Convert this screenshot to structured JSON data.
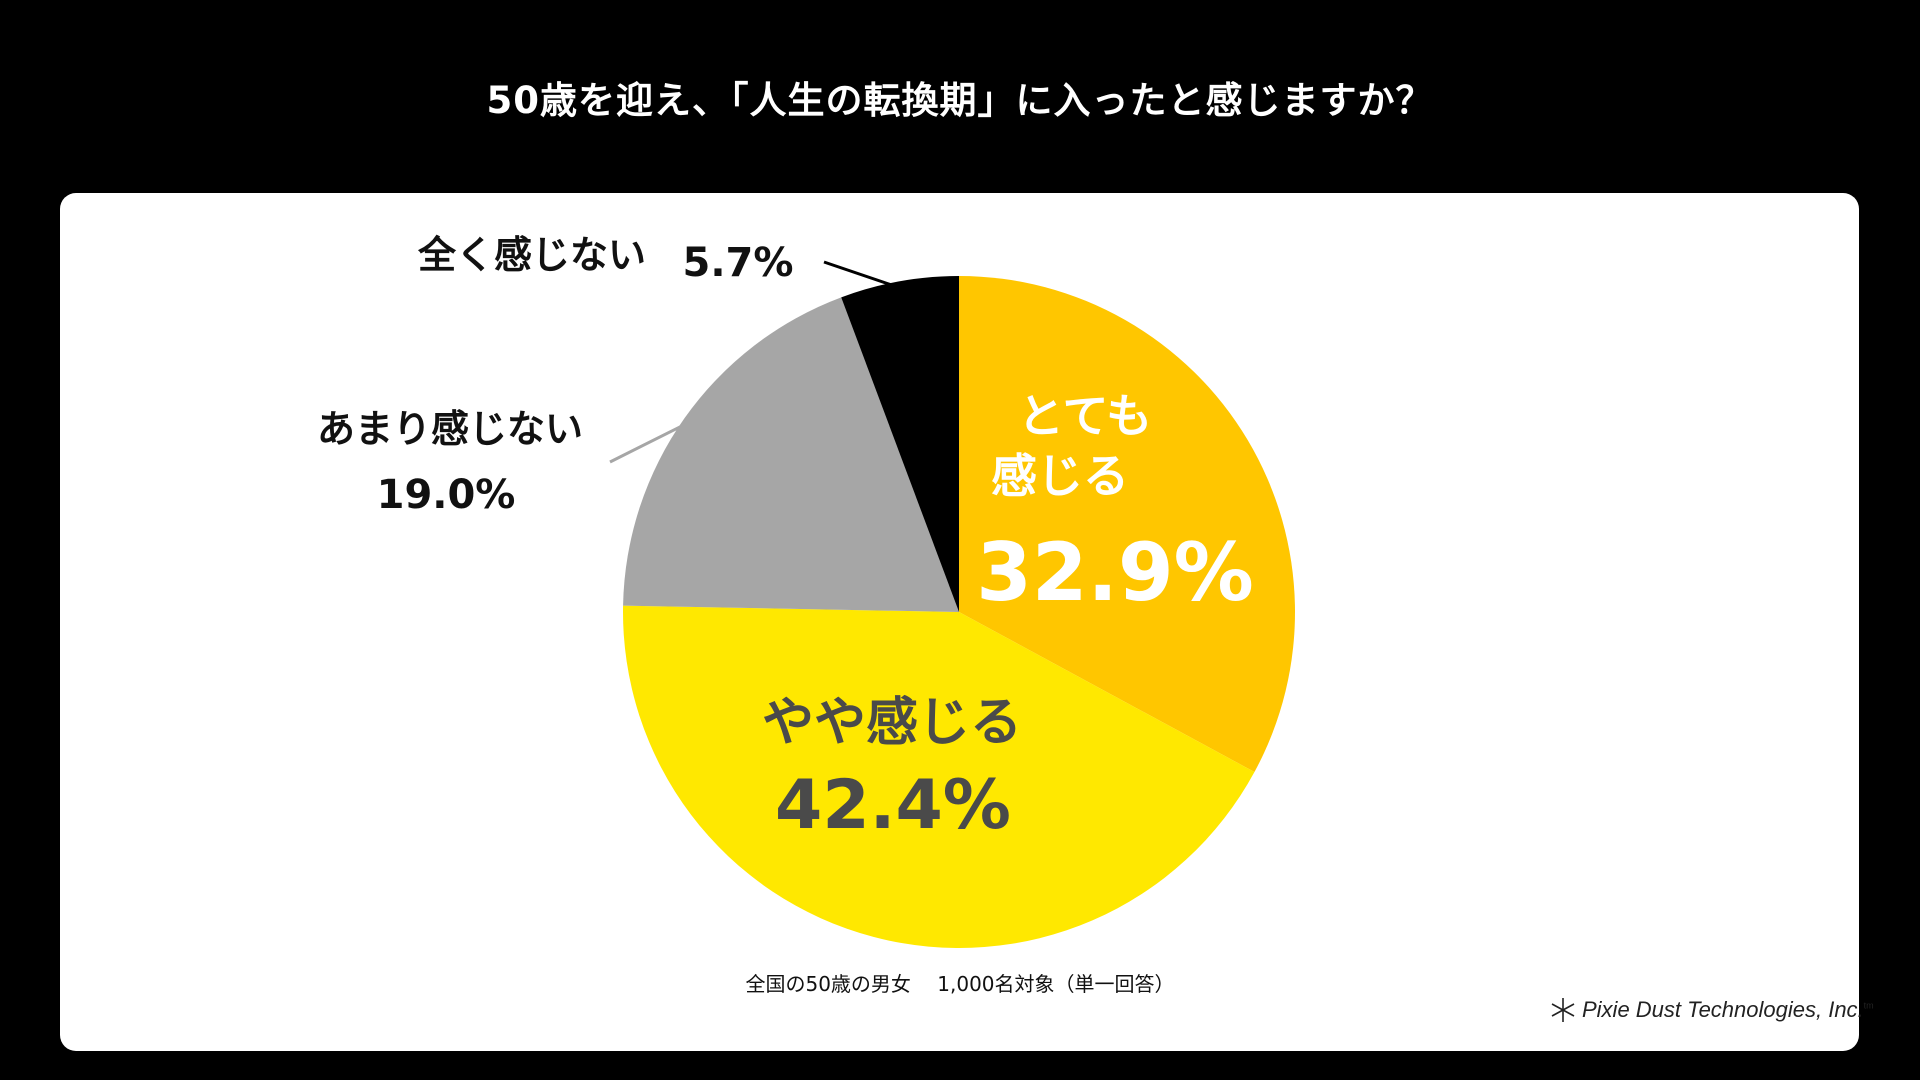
{
  "title": "50歳を迎え、「人生の転換期」に入ったと感じますか？",
  "note": "全国の50歳の男女　 1,000名対象（単一回答）",
  "logo": {
    "text": "Pixie Dust Technologies, Inc.",
    "mark": "asterisk-logo-icon",
    "superscript": "tm"
  },
  "colors": {
    "background": "#000000",
    "panel": "#ffffff"
  },
  "chart_data": {
    "type": "pie",
    "title": "50歳を迎え、「人生の転換期」に入ったと感じますか？",
    "start_angle_deg": 0,
    "direction": "clockwise",
    "slices": [
      {
        "label": "とても\n感じる",
        "value": 32.9,
        "display": "32.9%",
        "color": "#FFC600",
        "label_color": "#ffffff"
      },
      {
        "label": "やや感じる",
        "value": 42.4,
        "display": "42.4%",
        "color": "#FFE800",
        "label_color": "#4a4a4a"
      },
      {
        "label": "あまり感じない",
        "value": 19.0,
        "display": "19.0%",
        "color": "#A6A6A6",
        "label_color": "#111111"
      },
      {
        "label": "全く感じない",
        "value": 5.7,
        "display": "5.7%",
        "color": "#000000",
        "label_color": "#111111"
      }
    ]
  }
}
